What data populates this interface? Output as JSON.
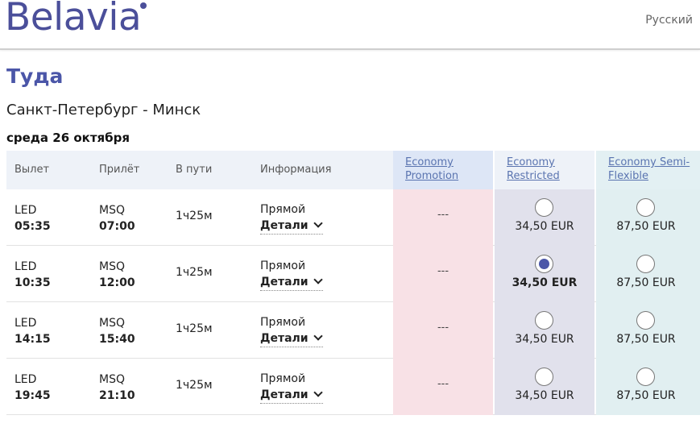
{
  "header": {
    "logo": "Belavia",
    "language": "Русский"
  },
  "page": {
    "title": "Туда",
    "route": "Санкт-Петербург - Минск",
    "date": "среда 26 октября"
  },
  "table": {
    "columns": {
      "departure": "Вылет",
      "arrival": "Прилёт",
      "duration": "В пути",
      "info": "Информация"
    },
    "fares": [
      {
        "line1": "Economy",
        "line2": "Promotion"
      },
      {
        "line1": "Economy",
        "line2": "Restricted"
      },
      {
        "line1": "Economy Semi-",
        "line2": "Flexible"
      }
    ],
    "rows": [
      {
        "dep_code": "LED",
        "dep_time": "05:35",
        "arr_code": "MSQ",
        "arr_time": "07:00",
        "duration": "1ч25м",
        "type": "Прямой",
        "details": "Детали",
        "promo": "---",
        "restricted": "34,50 EUR",
        "semi": "87,50 EUR",
        "selected": false
      },
      {
        "dep_code": "LED",
        "dep_time": "10:35",
        "arr_code": "MSQ",
        "arr_time": "12:00",
        "duration": "1ч25м",
        "type": "Прямой",
        "details": "Детали",
        "promo": "---",
        "restricted": "34,50 EUR",
        "semi": "87,50 EUR",
        "selected": true
      },
      {
        "dep_code": "LED",
        "dep_time": "14:15",
        "arr_code": "MSQ",
        "arr_time": "15:40",
        "duration": "1ч25м",
        "type": "Прямой",
        "details": "Детали",
        "promo": "---",
        "restricted": "34,50 EUR",
        "semi": "87,50 EUR",
        "selected": false
      },
      {
        "dep_code": "LED",
        "dep_time": "19:45",
        "arr_code": "MSQ",
        "arr_time": "21:10",
        "duration": "1ч25м",
        "type": "Прямой",
        "details": "Детали",
        "promo": "---",
        "restricted": "34,50 EUR",
        "semi": "87,50 EUR",
        "selected": false
      }
    ]
  },
  "colors": {
    "brand": "#4b4f9a",
    "title": "#4b56a8",
    "promo_bg": "#f8e1e6",
    "restricted_bg": "#e1e1ec",
    "semi_bg": "#e1eff1"
  },
  "icons": {
    "details_toggle": "chevron-down-icon",
    "logo_mark": "logo-dot-icon"
  }
}
